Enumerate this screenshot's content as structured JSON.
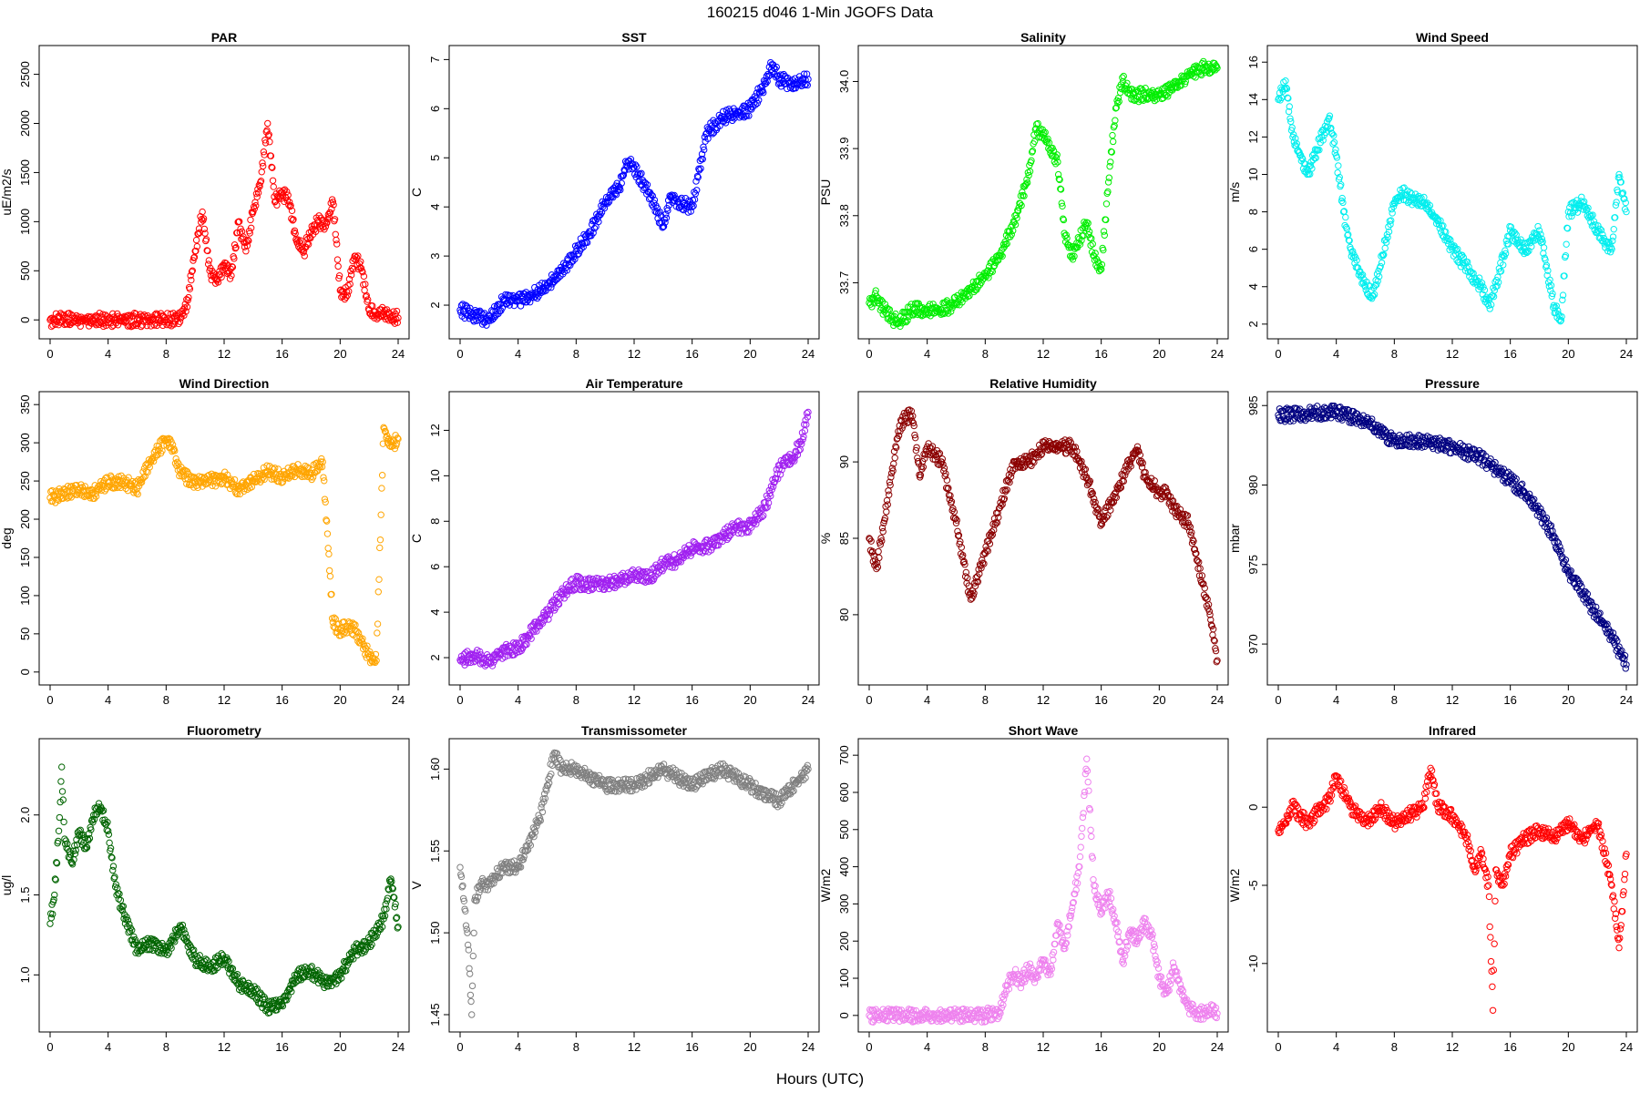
{
  "figure": {
    "title": "160215   d046   1-Min  JGOFS Data",
    "xlabel": "Hours (UTC)"
  },
  "chart_data": [
    {
      "type": "scatter",
      "title": "PAR",
      "ylabel": "uE/m2/s",
      "color": "#ff0000",
      "xlim": [
        0,
        24
      ],
      "ylim": [
        -100,
        2700
      ],
      "xticks": [
        "0",
        "4",
        "8",
        "12",
        "16",
        "20",
        "24"
      ],
      "yticks": [
        "0",
        "500",
        "1000",
        "1500",
        "2000",
        "2500"
      ],
      "x": [
        0,
        2,
        4,
        6,
        8,
        9,
        9.5,
        10,
        10.5,
        11,
        11.5,
        12,
        12.5,
        13,
        13.5,
        14,
        14.5,
        15,
        15.5,
        16,
        16.5,
        17,
        17.5,
        18,
        18.5,
        19,
        19.5,
        20,
        20.5,
        21,
        21.5,
        22,
        22.5,
        23,
        23.5,
        24
      ],
      "y": [
        0,
        0,
        0,
        0,
        0,
        20,
        200,
        700,
        1100,
        500,
        400,
        550,
        450,
        1000,
        700,
        1100,
        1400,
        2000,
        1200,
        1300,
        1200,
        800,
        700,
        900,
        1000,
        950,
        1200,
        300,
        250,
        650,
        500,
        100,
        50,
        80,
        30,
        20
      ]
    },
    {
      "type": "scatter",
      "title": "SST",
      "ylabel": "C",
      "color": "#0000ff",
      "xlim": [
        0,
        24
      ],
      "ylim": [
        1.5,
        7.1
      ],
      "xticks": [
        "0",
        "4",
        "8",
        "12",
        "16",
        "20",
        "24"
      ],
      "yticks": [
        "2",
        "3",
        "4",
        "5",
        "6",
        "7"
      ],
      "x": [
        0,
        1,
        2,
        3,
        4,
        5,
        6,
        7,
        8,
        9,
        10,
        11,
        11.5,
        12,
        13,
        14,
        14.5,
        15,
        16,
        17,
        18,
        19,
        20,
        21,
        21.5,
        22,
        23,
        24
      ],
      "y": [
        1.9,
        1.8,
        1.7,
        2.1,
        2.1,
        2.2,
        2.4,
        2.7,
        3.1,
        3.5,
        4.1,
        4.4,
        4.9,
        4.8,
        4.3,
        3.6,
        4.2,
        4.1,
        4.0,
        5.5,
        5.8,
        5.9,
        6.0,
        6.5,
        6.9,
        6.6,
        6.5,
        6.6
      ]
    },
    {
      "type": "scatter",
      "title": "Salinity",
      "ylabel": "PSU",
      "color": "#00ee00",
      "xlim": [
        0,
        24
      ],
      "ylim": [
        33.63,
        34.04
      ],
      "xticks": [
        "0",
        "4",
        "8",
        "12",
        "16",
        "20",
        "24"
      ],
      "yticks": [
        "33.7",
        "33.8",
        "33.9",
        "34.0"
      ],
      "x": [
        0,
        0.5,
        1,
        1.5,
        2,
        3,
        4,
        5,
        6,
        7,
        8,
        9,
        10,
        11,
        11.5,
        12,
        13,
        13.5,
        14,
        15,
        15.5,
        16,
        16.5,
        17,
        17.5,
        18,
        19,
        20,
        21,
        22,
        23,
        24
      ],
      "y": [
        33.67,
        33.68,
        33.66,
        33.65,
        33.64,
        33.66,
        33.66,
        33.66,
        33.67,
        33.69,
        33.71,
        33.74,
        33.79,
        33.86,
        33.93,
        33.92,
        33.88,
        33.77,
        33.74,
        33.79,
        33.74,
        33.72,
        33.85,
        33.96,
        34.0,
        33.98,
        33.98,
        33.98,
        33.99,
        34.01,
        34.02,
        34.02
      ]
    },
    {
      "type": "scatter",
      "title": "Wind Speed",
      "ylabel": "m/s",
      "color": "#00eeee",
      "xlim": [
        0,
        24
      ],
      "ylim": [
        1.7,
        16.4
      ],
      "xticks": [
        "0",
        "4",
        "8",
        "12",
        "16",
        "20",
        "24"
      ],
      "yticks": [
        "2",
        "4",
        "6",
        "8",
        "10",
        "12",
        "14",
        "16"
      ],
      "x": [
        0,
        0.5,
        1,
        1.5,
        2,
        3,
        3.5,
        4,
        4.5,
        5,
        6,
        6.5,
        7,
        8,
        8.5,
        9,
        10,
        11,
        12,
        13,
        14,
        14.5,
        15,
        16,
        16.5,
        17,
        18,
        19,
        19.5,
        20,
        21,
        22,
        23,
        23.5,
        24
      ],
      "y": [
        14,
        15,
        12,
        11,
        10,
        12,
        13,
        11,
        8,
        6,
        4,
        3.5,
        5,
        8.5,
        9,
        8.8,
        8.5,
        7.5,
        6,
        5,
        4,
        3,
        4,
        7,
        6.5,
        6,
        7,
        3,
        2.2,
        8,
        8.5,
        7,
        6,
        10,
        8
      ]
    },
    {
      "type": "scatter",
      "title": "Wind Direction",
      "ylabel": "deg",
      "color": "#ffa500",
      "xlim": [
        0,
        24
      ],
      "ylim": [
        -5,
        355
      ],
      "xticks": [
        "0",
        "4",
        "8",
        "12",
        "16",
        "20",
        "24"
      ],
      "yticks": [
        "0",
        "50",
        "100",
        "150",
        "200",
        "250",
        "300",
        "350"
      ],
      "x": [
        0,
        1,
        2,
        3,
        4,
        5,
        6,
        7,
        8,
        8.5,
        9,
        10,
        11,
        12,
        13,
        14,
        15,
        16,
        17,
        18,
        18.8,
        19.5,
        20,
        20.5,
        21,
        21.5,
        22,
        22.5,
        23,
        23.5,
        24
      ],
      "y": [
        228,
        235,
        238,
        235,
        248,
        250,
        240,
        278,
        305,
        290,
        260,
        248,
        250,
        255,
        240,
        250,
        262,
        255,
        265,
        260,
        275,
        65,
        55,
        60,
        55,
        40,
        20,
        15,
        320,
        295,
        305
      ]
    },
    {
      "type": "scatter",
      "title": "Air Temperature",
      "ylabel": "C",
      "color": "#a020f0",
      "xlim": [
        0,
        24
      ],
      "ylim": [
        1.2,
        13.3
      ],
      "xticks": [
        "0",
        "4",
        "8",
        "12",
        "16",
        "20",
        "24"
      ],
      "yticks": [
        "2",
        "4",
        "6",
        "8",
        "10",
        "12"
      ],
      "x": [
        0,
        1,
        2,
        3,
        4,
        5,
        6,
        7,
        8,
        9,
        10,
        11,
        12,
        13,
        14,
        15,
        16,
        17,
        18,
        19,
        20,
        21,
        22,
        22.5,
        23,
        23.5,
        24
      ],
      "y": [
        1.9,
        2.1,
        1.8,
        2.3,
        2.4,
        3.2,
        3.9,
        4.8,
        5.3,
        5.2,
        5.3,
        5.4,
        5.7,
        5.5,
        6.1,
        6.3,
        6.8,
        6.9,
        7.3,
        7.7,
        7.8,
        8.6,
        10.3,
        10.6,
        10.8,
        11.5,
        12.8
      ]
    },
    {
      "type": "scatter",
      "title": "Relative Humidity",
      "ylabel": "%",
      "color": "#8b0000",
      "xlim": [
        0,
        24
      ],
      "ylim": [
        76,
        94
      ],
      "xticks": [
        "0",
        "4",
        "8",
        "12",
        "16",
        "20",
        "24"
      ],
      "yticks": [
        "80",
        "85",
        "90"
      ],
      "x": [
        0,
        0.5,
        1,
        1.5,
        2,
        2.5,
        3,
        3.5,
        4,
        5,
        6,
        7,
        8,
        9,
        10,
        11,
        12,
        13,
        14,
        15,
        16,
        17,
        18,
        18.5,
        19,
        20,
        20.5,
        21,
        22,
        22.5,
        23,
        23.5,
        24
      ],
      "y": [
        85,
        83,
        86,
        89,
        92,
        93,
        93,
        89,
        91,
        90,
        86,
        81,
        84,
        87,
        90,
        90,
        91,
        91,
        91,
        89,
        86,
        88,
        90,
        91,
        89,
        88,
        88,
        87,
        86,
        84,
        82,
        80,
        77
      ]
    },
    {
      "type": "scatter",
      "title": "Pressure",
      "ylabel": "mbar",
      "color": "#000080",
      "xlim": [
        0,
        24
      ],
      "ylim": [
        968,
        985.3
      ],
      "xticks": [
        "0",
        "4",
        "8",
        "12",
        "16",
        "20",
        "24"
      ],
      "yticks": [
        "970",
        "975",
        "980",
        "985"
      ],
      "x": [
        0,
        2,
        4,
        6,
        8,
        10,
        12,
        14,
        16,
        17,
        18,
        19,
        20,
        21,
        22,
        23,
        24
      ],
      "y": [
        984.4,
        984.5,
        984.6,
        984.0,
        982.8,
        982.7,
        982.4,
        981.7,
        980.3,
        979.5,
        978.3,
        976.8,
        974.5,
        973.2,
        971.8,
        970.5,
        968.7
      ]
    },
    {
      "type": "scatter",
      "title": "Fluorometry",
      "ylabel": "ug/l",
      "color": "#006400",
      "xlim": [
        0,
        24
      ],
      "ylim": [
        0.7,
        2.42
      ],
      "xticks": [
        "0",
        "4",
        "8",
        "12",
        "16",
        "20",
        "24"
      ],
      "yticks": [
        "1.0",
        "1.5",
        "2.0"
      ],
      "x": [
        0,
        0.3,
        0.6,
        0.8,
        1,
        1.5,
        2,
        2.5,
        3,
        3.5,
        4,
        4.5,
        5,
        6,
        7,
        8,
        9,
        10,
        11,
        12,
        13,
        14,
        15,
        16,
        17,
        18,
        19,
        20,
        21,
        22,
        23,
        23.5,
        24
      ],
      "y": [
        1.32,
        1.5,
        1.9,
        2.3,
        1.85,
        1.7,
        1.9,
        1.8,
        2.0,
        2.05,
        1.9,
        1.55,
        1.4,
        1.15,
        1.2,
        1.15,
        1.3,
        1.1,
        1.05,
        1.1,
        0.95,
        0.9,
        0.8,
        0.82,
        1.0,
        1.02,
        0.95,
        1.0,
        1.15,
        1.2,
        1.35,
        1.6,
        1.3
      ]
    },
    {
      "type": "scatter",
      "title": "Transmissometer",
      "ylabel": "V",
      "color": "#808080",
      "xlim": [
        0,
        24
      ],
      "ylim": [
        1.445,
        1.613
      ],
      "xticks": [
        "0",
        "4",
        "8",
        "12",
        "16",
        "20",
        "24"
      ],
      "yticks": [
        "1.45",
        "1.50",
        "1.55",
        "1.60"
      ],
      "x": [
        0,
        0.5,
        0.8,
        1,
        1.5,
        2,
        3,
        4,
        4.5,
        5,
        5.5,
        6,
        6.5,
        7,
        8,
        10,
        12,
        14,
        16,
        18,
        20,
        22,
        24
      ],
      "y": [
        1.54,
        1.5,
        1.45,
        1.52,
        1.53,
        1.53,
        1.54,
        1.54,
        1.55,
        1.56,
        1.57,
        1.59,
        1.61,
        1.6,
        1.6,
        1.59,
        1.59,
        1.6,
        1.59,
        1.6,
        1.59,
        1.58,
        1.6
      ]
    },
    {
      "type": "scatter",
      "title": "Short Wave",
      "ylabel": "W/m2",
      "color": "#ee82ee",
      "xlim": [
        0,
        24
      ],
      "ylim": [
        -20,
        720
      ],
      "xticks": [
        "0",
        "4",
        "8",
        "12",
        "16",
        "20",
        "24"
      ],
      "yticks": [
        "0",
        "100",
        "200",
        "300",
        "400",
        "500",
        "600",
        "700"
      ],
      "x": [
        0,
        2,
        4,
        6,
        8,
        9,
        9.5,
        10,
        10.5,
        11,
        11.5,
        12,
        12.5,
        13,
        13.5,
        14,
        14.5,
        15,
        15.5,
        16,
        16.5,
        17,
        17.5,
        18,
        18.5,
        19,
        19.5,
        20,
        20.5,
        21,
        21.5,
        22,
        22.5,
        23,
        23.5,
        24
      ],
      "y": [
        0,
        0,
        0,
        0,
        0,
        10,
        80,
        110,
        90,
        130,
        100,
        150,
        110,
        250,
        180,
        290,
        400,
        690,
        350,
        280,
        330,
        250,
        150,
        230,
        200,
        250,
        210,
        100,
        60,
        130,
        70,
        20,
        10,
        5,
        15,
        5
      ]
    },
    {
      "type": "scatter",
      "title": "Infrared",
      "ylabel": "W/m2",
      "color": "#ff0000",
      "xlim": [
        0,
        24
      ],
      "ylim": [
        -13.8,
        3.8
      ],
      "xticks": [
        "0",
        "4",
        "8",
        "12",
        "16",
        "20",
        "24"
      ],
      "yticks": [
        "-10",
        "-5",
        "0"
      ],
      "x": [
        0,
        0.5,
        1,
        1.5,
        2,
        3,
        3.5,
        4,
        5,
        6,
        7,
        8,
        9,
        10,
        10.5,
        11,
        12,
        13,
        13.5,
        14,
        14.5,
        14.8,
        15,
        15.5,
        16,
        17,
        18,
        19,
        20,
        21,
        22,
        23,
        23.5,
        24
      ],
      "y": [
        -1.5,
        -1,
        0,
        -0.5,
        -1,
        0,
        0.5,
        2,
        0,
        -1,
        0,
        -1,
        -0.5,
        0,
        2.5,
        0,
        -0.5,
        -2,
        -4,
        -3,
        -5,
        -13,
        -4,
        -5,
        -3,
        -2,
        -1.5,
        -2,
        -1,
        -2,
        -1,
        -5,
        -9,
        -3
      ]
    }
  ]
}
